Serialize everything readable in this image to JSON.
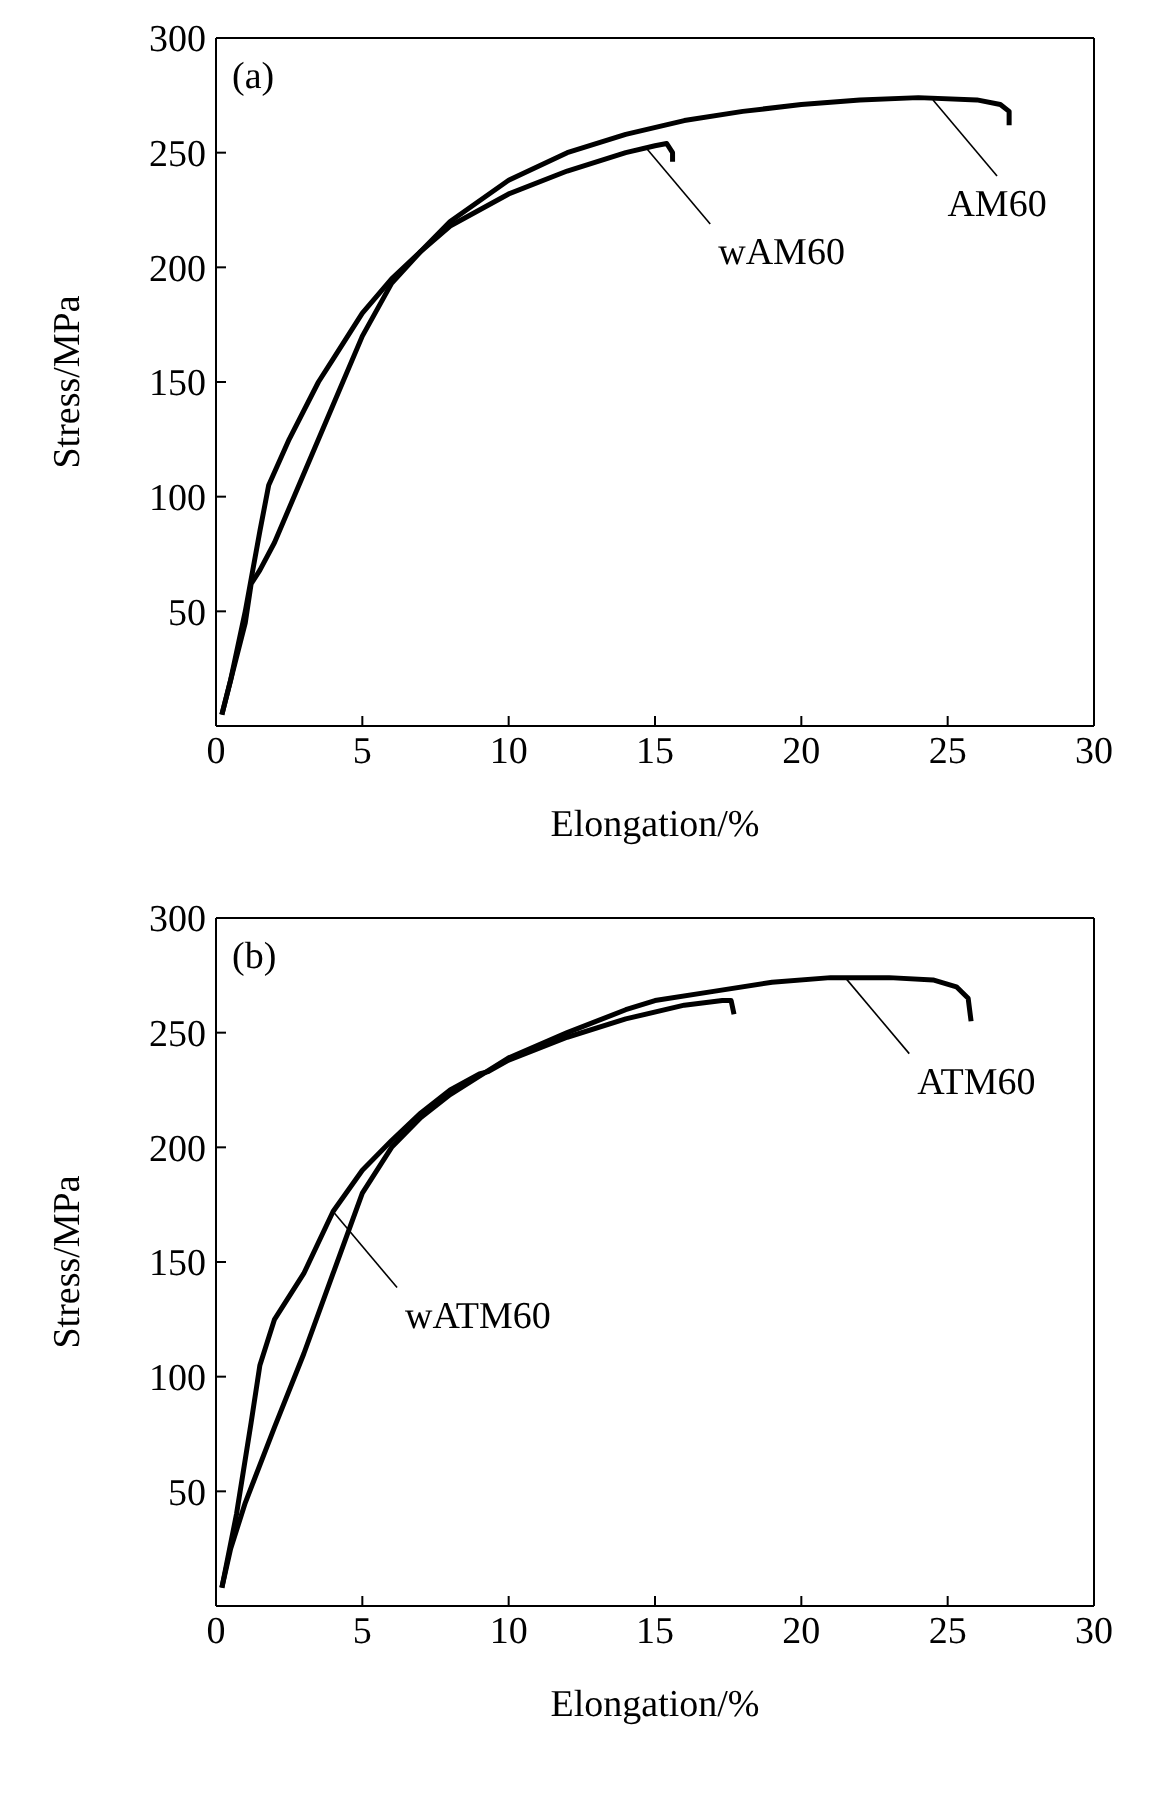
{
  "chart_data": [
    {
      "type": "line",
      "title": "(a)",
      "xlabel": "Elongation/%",
      "ylabel": "Stress/MPa",
      "xlim": [
        0,
        30
      ],
      "xticks": [
        0,
        5,
        10,
        15,
        20,
        25,
        30
      ],
      "ylim": [
        0,
        300
      ],
      "yticks": [
        {
          "value": 0,
          "label": null
        },
        50,
        100,
        150,
        200,
        250,
        300
      ],
      "marker": "none",
      "line_style": "solid",
      "series": [
        {
          "color": "#000000",
          "x": [
            0.2,
            0.5,
            1,
            1.2,
            1.5,
            2,
            3,
            4,
            5,
            6,
            7,
            8,
            10,
            12,
            14,
            16,
            18,
            20,
            22,
            24,
            26,
            26.8,
            27.1,
            27.1
          ],
          "values": [
            5,
            20,
            45,
            62,
            68,
            80,
            110,
            140,
            170,
            193,
            207,
            220,
            238,
            250,
            258,
            264,
            268,
            271,
            273,
            274,
            273,
            271,
            268,
            262
          ]
        },
        {
          "color": "#000000",
          "x": [
            0.2,
            0.5,
            1,
            1.5,
            1.8,
            2.5,
            3.5,
            4,
            5,
            6,
            7,
            8,
            10,
            12,
            14,
            15,
            15.4,
            15.6,
            15.6
          ],
          "values": [
            5,
            20,
            50,
            85,
            105,
            125,
            150,
            160,
            180,
            195,
            207,
            218,
            232,
            242,
            250,
            253,
            254,
            250,
            246
          ]
        }
      ],
      "annotations": [
        {
          "text": "AM60",
          "x": 24.5,
          "y": 273
        },
        {
          "text": "wAM60",
          "x": 14.7,
          "y": 252
        }
      ]
    },
    {
      "type": "line",
      "title": "(b)",
      "xlabel": "Elongation/%",
      "ylabel": "Stress/MPa",
      "xlim": [
        0,
        30
      ],
      "xticks": [
        0,
        5,
        10,
        15,
        20,
        25,
        30
      ],
      "ylim": [
        0,
        300
      ],
      "yticks": [
        {
          "value": 0,
          "label": null
        },
        50,
        100,
        150,
        200,
        250,
        300
      ],
      "marker": "none",
      "line_style": "solid",
      "series": [
        {
          "color": "#000000",
          "x": [
            0.2,
            0.5,
            1,
            2,
            3,
            4,
            5,
            6,
            7,
            8,
            9,
            10,
            12,
            14,
            15,
            17,
            19,
            21,
            23,
            24.5,
            25.3,
            25.7,
            25.8
          ],
          "values": [
            8,
            25,
            45,
            78,
            110,
            145,
            180,
            200,
            213,
            223,
            231,
            239,
            250,
            260,
            264,
            268,
            272,
            274,
            274,
            273,
            270,
            265,
            255
          ]
        },
        {
          "color": "#000000",
          "x": [
            0.2,
            0.7,
            1.2,
            1.5,
            2,
            3,
            4,
            5,
            6,
            7,
            8,
            9,
            9.3,
            10,
            12,
            14,
            16,
            17.3,
            17.6,
            17.7
          ],
          "values": [
            8,
            40,
            80,
            105,
            125,
            145,
            172,
            190,
            203,
            215,
            225,
            232,
            233,
            238,
            248,
            256,
            262,
            264,
            264,
            258
          ]
        }
      ],
      "annotations": [
        {
          "text": "ATM60",
          "x": 21.5,
          "y": 274
        },
        {
          "text": "wATM60",
          "x": 4,
          "y": 172
        }
      ]
    }
  ]
}
